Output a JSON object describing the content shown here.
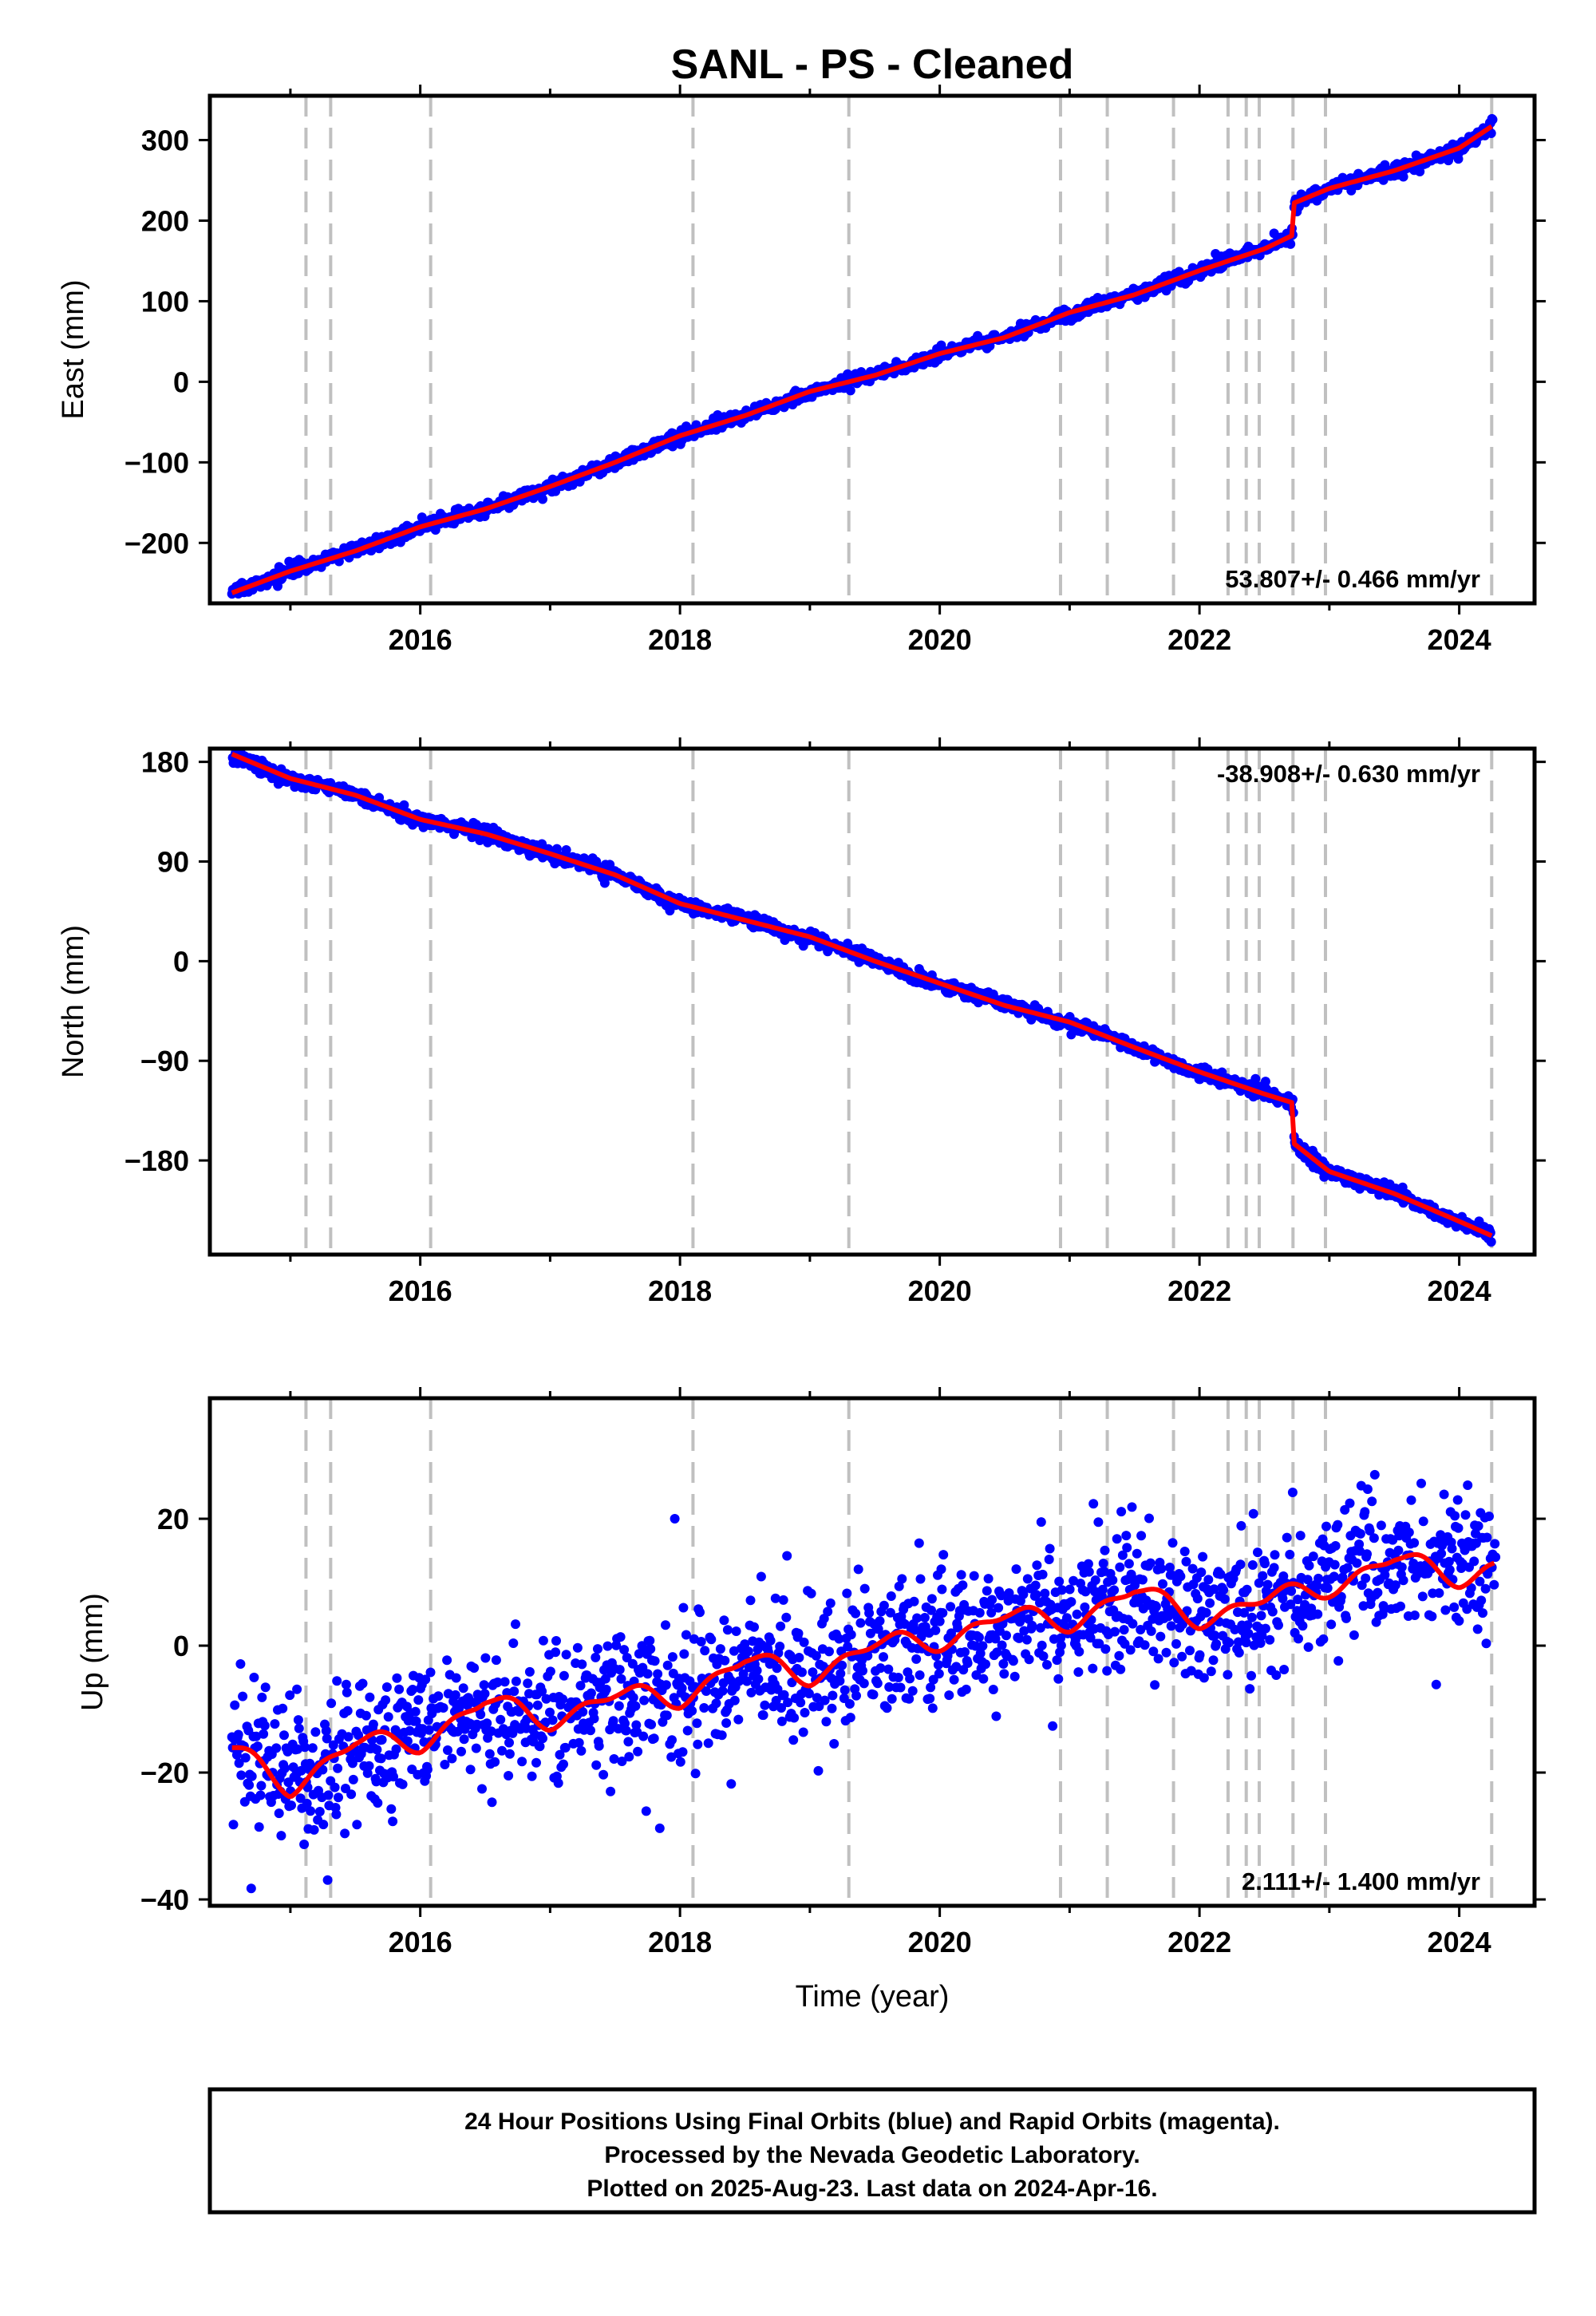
{
  "title": "SANL  - PS - Cleaned",
  "colors": {
    "data": "#0000ff",
    "model": "#ff0000",
    "events": "#c0c0c0",
    "axis": "#000000"
  },
  "footer": {
    "line1": "24 Hour Positions Using Final Orbits (blue) and Rapid Orbits (magenta).",
    "line2": "Processed by the Nevada Geodetic Laboratory.",
    "line3": "Plotted on 2025-Aug-23. Last data on 2024-Apr-16."
  },
  "chart_data": [
    {
      "type": "scatter",
      "name": "east",
      "ylabel": "East (mm)",
      "xlabel": "",
      "xlim": [
        2014.38,
        2024.58
      ],
      "ylim": [
        -275,
        355
      ],
      "x_ticks": [
        2016,
        2018,
        2020,
        2022,
        2024
      ],
      "y_ticks": [
        300,
        200,
        100,
        0,
        -100,
        -200
      ],
      "y_tick_labels": [
        "300",
        "200",
        "100",
        "0",
        "−100",
        "−200"
      ],
      "rate_label": "53.807+/- 0.466 mm/yr",
      "rate_position": "bottom-right",
      "event_lines": [
        2015.12,
        2015.31,
        2016.08,
        2018.1,
        2019.3,
        2020.93,
        2021.29,
        2021.8,
        2022.22,
        2022.36,
        2022.46,
        2022.72,
        2022.97,
        2024.25
      ],
      "model_trend": {
        "x": [
          2014.55,
          2015.0,
          2015.5,
          2016.0,
          2016.5,
          2017.0,
          2017.5,
          2018.0,
          2018.5,
          2019.0,
          2019.5,
          2020.0,
          2020.5,
          2021.0,
          2021.5,
          2022.0,
          2022.5,
          2022.72,
          2022.73,
          2023.0,
          2023.5,
          2024.0,
          2024.25,
          2024.26
        ],
        "y": [
          -262,
          -235,
          -210,
          -180,
          -158,
          -130,
          -100,
          -67,
          -42,
          -12,
          8,
          35,
          55,
          86,
          108,
          138,
          165,
          182,
          222,
          240,
          262,
          290,
          317,
          336
        ]
      },
      "noise_mm": 4,
      "seasonal_mm": 3
    },
    {
      "type": "scatter",
      "name": "north",
      "ylabel": "North (mm)",
      "xlabel": "",
      "xlim": [
        2014.38,
        2024.58
      ],
      "ylim": [
        -265,
        192
      ],
      "x_ticks": [
        2016,
        2018,
        2020,
        2022,
        2024
      ],
      "y_ticks": [
        180,
        90,
        0,
        -90,
        -180
      ],
      "y_tick_labels": [
        "180",
        "90",
        "0",
        "−90",
        "−180"
      ],
      "rate_label": "-38.908+/- 0.630 mm/yr",
      "rate_position": "top-right",
      "event_lines": [
        2015.12,
        2015.31,
        2016.08,
        2018.1,
        2019.3,
        2020.93,
        2021.29,
        2021.8,
        2022.22,
        2022.36,
        2022.46,
        2022.72,
        2022.97,
        2024.25
      ],
      "model_trend": {
        "x": [
          2014.55,
          2015.0,
          2015.5,
          2016.0,
          2016.5,
          2017.0,
          2017.5,
          2018.0,
          2018.5,
          2019.0,
          2019.5,
          2020.0,
          2020.5,
          2021.0,
          2021.5,
          2022.0,
          2022.5,
          2022.72,
          2022.73,
          2023.0,
          2023.5,
          2024.0,
          2024.25
        ],
        "y": [
          187,
          165,
          150,
          128,
          115,
          97,
          78,
          52,
          37,
          22,
          0,
          -20,
          -40,
          -55,
          -78,
          -100,
          -120,
          -128,
          -165,
          -190,
          -210,
          -235,
          -248
        ]
      },
      "noise_mm": 3,
      "seasonal_mm": 4
    },
    {
      "type": "scatter",
      "name": "up",
      "ylabel": "Up (mm)",
      "xlabel": "Time (year)",
      "xlim": [
        2014.38,
        2024.58
      ],
      "ylim": [
        -41,
        39
      ],
      "x_ticks": [
        2016,
        2018,
        2020,
        2022,
        2024
      ],
      "y_ticks": [
        20,
        0,
        -20,
        -40
      ],
      "y_tick_labels": [
        "20",
        "0",
        "−20",
        "−40"
      ],
      "rate_label": "2.111+/- 1.400 mm/yr",
      "rate_position": "bottom-right",
      "event_lines": [
        2015.12,
        2015.31,
        2016.08,
        2018.1,
        2019.3,
        2020.93,
        2021.29,
        2021.8,
        2022.22,
        2022.36,
        2022.46,
        2022.72,
        2022.97,
        2024.25
      ],
      "model_trend": {
        "x": [
          2014.55,
          2015.0,
          2015.5,
          2016.0,
          2016.5,
          2017.0,
          2017.5,
          2018.0,
          2018.5,
          2019.0,
          2019.5,
          2020.0,
          2020.5,
          2021.0,
          2021.5,
          2022.0,
          2022.5,
          2023.0,
          2023.5,
          2024.0,
          2024.28
        ],
        "y": [
          -17,
          -21.5,
          -16,
          -14.5,
          -9.5,
          -11,
          -8.5,
          -7.5,
          -3,
          -4,
          -0.5,
          1.5,
          4,
          4.5,
          8,
          5,
          6.5,
          10,
          13,
          11.5,
          12.5
        ]
      },
      "noise_mm": 5.5,
      "seasonal_mm": 4.5
    }
  ]
}
